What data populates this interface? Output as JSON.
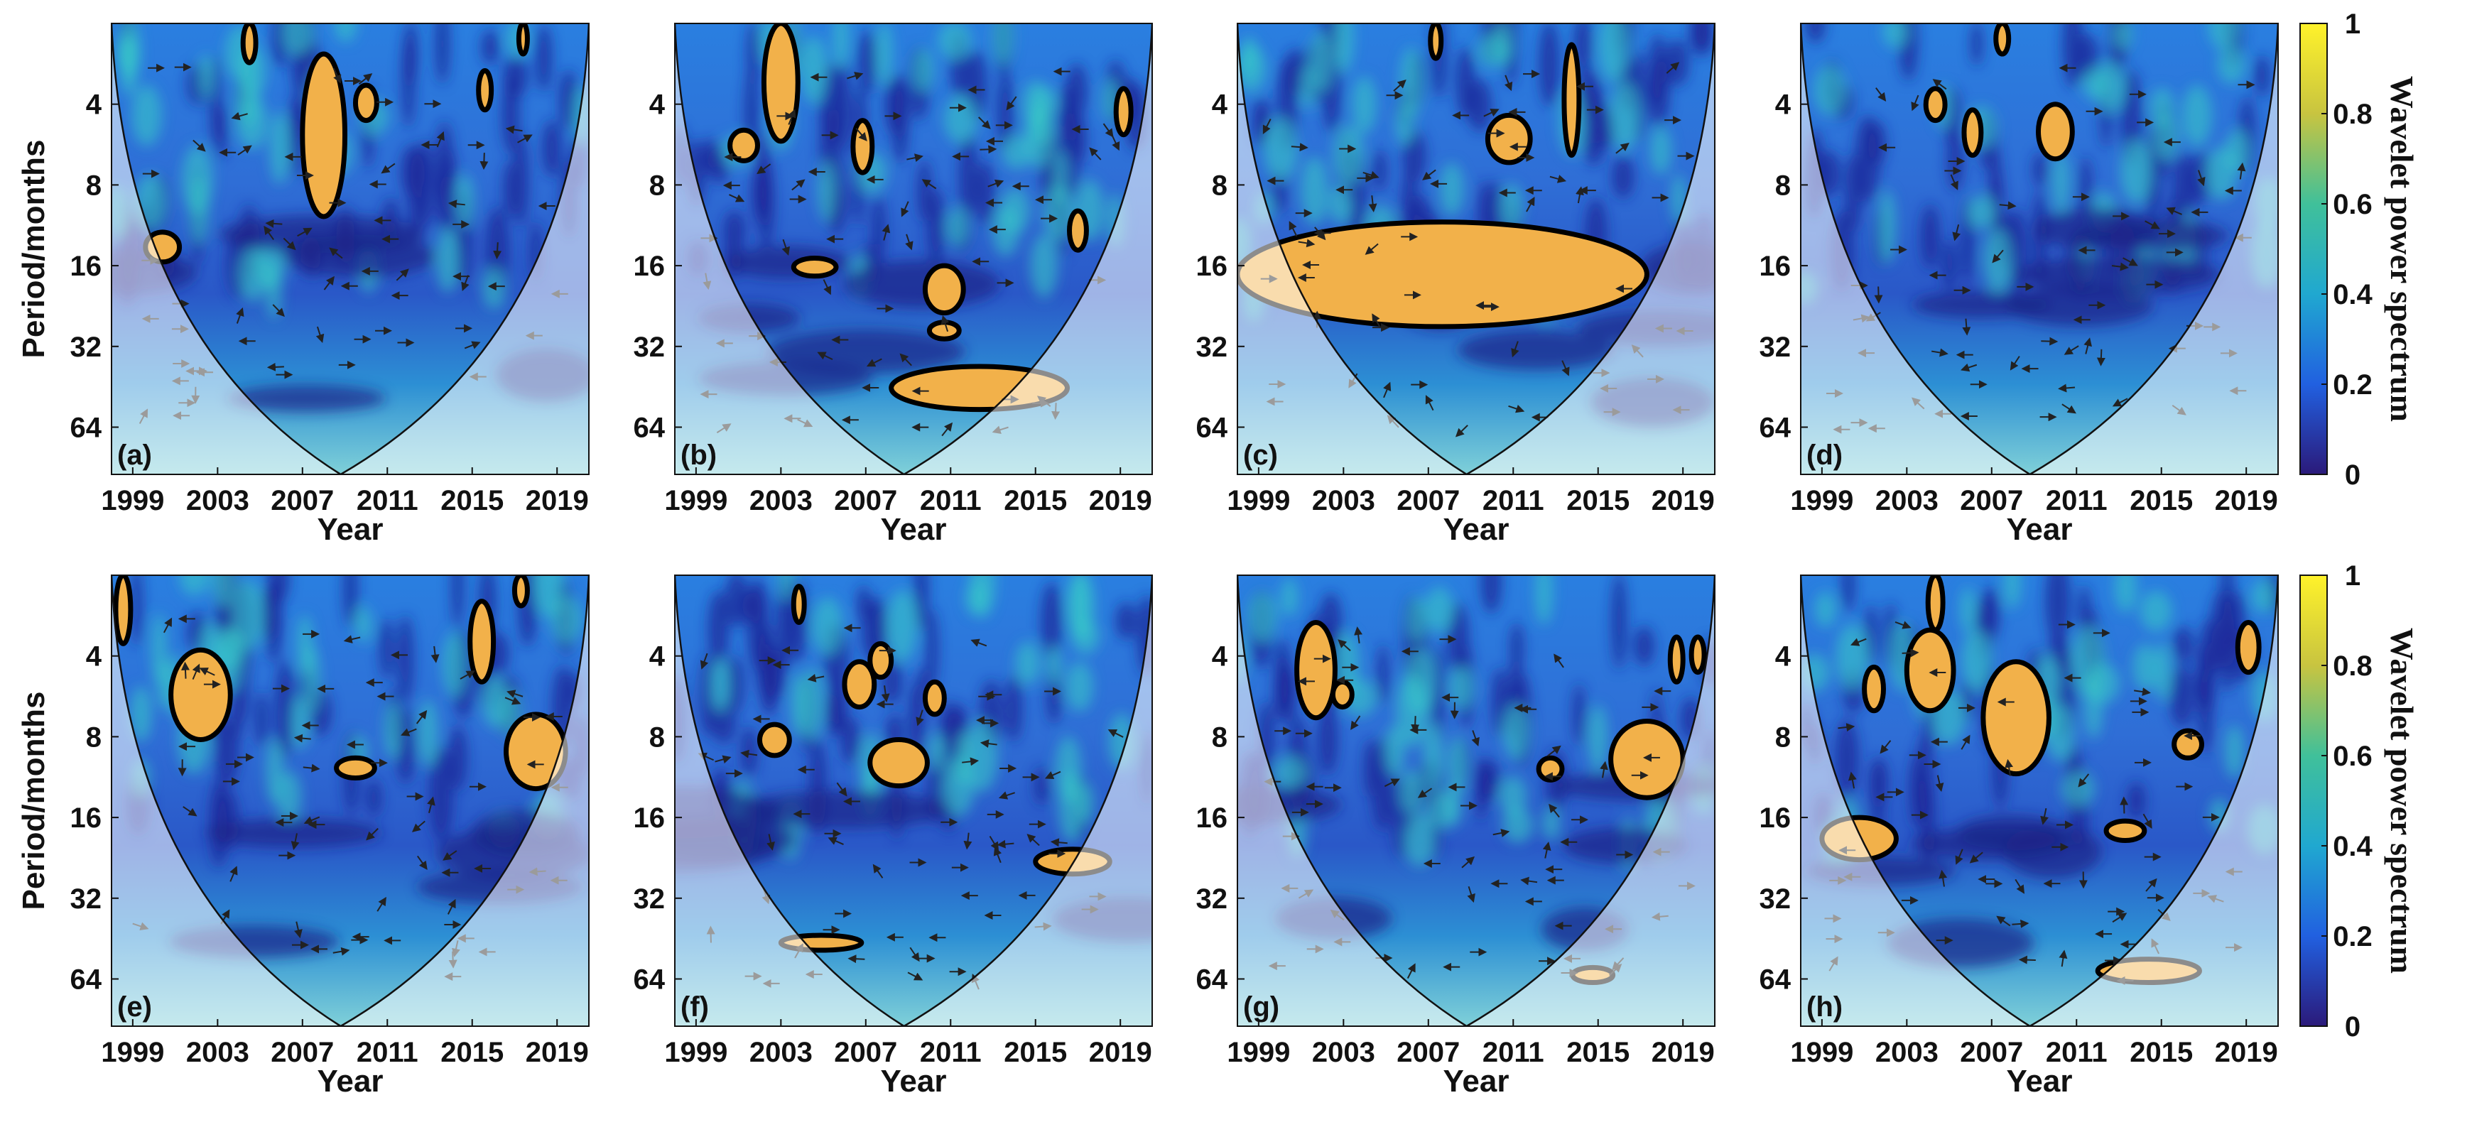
{
  "chart_data": {
    "type": "heatmap",
    "subtype": "wavelet-coherence",
    "x": {
      "label": "Year",
      "ticks": [
        "1999",
        "2003",
        "2007",
        "2011",
        "2015",
        "2019"
      ],
      "range": [
        1998.0,
        2020.5
      ]
    },
    "y": {
      "label": "Period/months",
      "ticks": [
        "4",
        "8",
        "16",
        "32",
        "64"
      ],
      "scale": "log2",
      "range": [
        2,
        96
      ],
      "reversed": true
    },
    "colorbar": {
      "title": "Wavelet power spectrum",
      "ticks": [
        "0",
        "0.2",
        "0.4",
        "0.6",
        "0.8",
        "1"
      ],
      "range": [
        0,
        1
      ],
      "colors": [
        "#2b1a7a",
        "#2160e0",
        "#20a8d0",
        "#40c09a",
        "#c8c440",
        "#fff22a"
      ]
    },
    "colors": {
      "significant_region": "#f2b14a",
      "contour": "#000000",
      "arrow": "#222222",
      "cone_shade": "#ffffff"
    },
    "panels": [
      {
        "label": "(a)",
        "regions": [
          {
            "x": [
              2007.0,
              2009.0
            ],
            "y": [
              2.6,
              10.5
            ]
          },
          {
            "x": [
              1999.6,
              2001.2
            ],
            "y": [
              12.0,
              15.5
            ]
          },
          {
            "x": [
              2009.5,
              2010.5
            ],
            "y": [
              3.4,
              4.6
            ]
          },
          {
            "x": [
              2015.3,
              2015.9
            ],
            "y": [
              3.0,
              4.2
            ]
          },
          {
            "x": [
              2004.2,
              2004.8
            ],
            "y": [
              2.0,
              2.8
            ]
          },
          {
            "x": [
              2017.2,
              2017.6
            ],
            "y": [
              2.0,
              2.6
            ]
          }
        ]
      },
      {
        "label": "(b)",
        "regions": [
          {
            "x": [
              2008.2,
              2016.5
            ],
            "y": [
              38.0,
              55.0
            ]
          },
          {
            "x": [
              2002.2,
              2003.8
            ],
            "y": [
              2.0,
              5.5
            ]
          },
          {
            "x": [
              2000.6,
              2001.9
            ],
            "y": [
              5.0,
              6.5
            ]
          },
          {
            "x": [
              2006.4,
              2007.3
            ],
            "y": [
              4.6,
              7.2
            ]
          },
          {
            "x": [
              2009.8,
              2011.6
            ],
            "y": [
              16.0,
              24.0
            ]
          },
          {
            "x": [
              2003.6,
              2005.6
            ],
            "y": [
              15.0,
              17.5
            ]
          },
          {
            "x": [
              2010.0,
              2011.4
            ],
            "y": [
              26.0,
              30.0
            ]
          },
          {
            "x": [
              2016.6,
              2017.4
            ],
            "y": [
              10.0,
              14.0
            ]
          },
          {
            "x": [
              2018.8,
              2019.5
            ],
            "y": [
              3.5,
              5.2
            ]
          }
        ]
      },
      {
        "label": "(c)",
        "regions": [
          {
            "x": [
              1998.0,
              2017.3
            ],
            "y": [
              11.0,
              27.0
            ]
          },
          {
            "x": [
              2013.4,
              2014.1
            ],
            "y": [
              2.4,
              6.2
            ]
          },
          {
            "x": [
              2009.8,
              2011.8
            ],
            "y": [
              4.4,
              6.6
            ]
          },
          {
            "x": [
              2007.1,
              2007.6
            ],
            "y": [
              2.0,
              2.7
            ]
          }
        ]
      },
      {
        "label": "(d)",
        "regions": [
          {
            "x": [
              2009.2,
              2010.8
            ],
            "y": [
              4.0,
              6.4
            ]
          },
          {
            "x": [
              2003.9,
              2004.8
            ],
            "y": [
              3.5,
              4.6
            ]
          },
          {
            "x": [
              2005.7,
              2006.5
            ],
            "y": [
              4.2,
              6.2
            ]
          },
          {
            "x": [
              2007.2,
              2007.8
            ],
            "y": [
              2.0,
              2.6
            ]
          }
        ]
      },
      {
        "label": "(e)",
        "regions": [
          {
            "x": [
              2000.8,
              2003.6
            ],
            "y": [
              3.8,
              8.2
            ]
          },
          {
            "x": [
              2016.6,
              2019.4
            ],
            "y": [
              6.6,
              12.5
            ]
          },
          {
            "x": [
              2014.9,
              2016.0
            ],
            "y": [
              2.5,
              5.0
            ]
          },
          {
            "x": [
              2008.6,
              2010.4
            ],
            "y": [
              9.6,
              11.4
            ]
          },
          {
            "x": [
              1998.2,
              1998.9
            ],
            "y": [
              2.0,
              3.6
            ]
          },
          {
            "x": [
              2017.0,
              2017.6
            ],
            "y": [
              2.0,
              2.6
            ]
          }
        ]
      },
      {
        "label": "(f)",
        "regions": [
          {
            "x": [
              2007.2,
              2009.9
            ],
            "y": [
              8.2,
              12.2
            ]
          },
          {
            "x": [
              2015.0,
              2018.5
            ],
            "y": [
              21.0,
              26.0
            ]
          },
          {
            "x": [
              2003.0,
              2006.8
            ],
            "y": [
              44.0,
              50.0
            ]
          },
          {
            "x": [
              2002.0,
              2003.4
            ],
            "y": [
              7.2,
              9.4
            ]
          },
          {
            "x": [
              2006.0,
              2007.4
            ],
            "y": [
              4.2,
              6.2
            ]
          },
          {
            "x": [
              2007.2,
              2008.2
            ],
            "y": [
              3.6,
              4.8
            ]
          },
          {
            "x": [
              2009.8,
              2010.7
            ],
            "y": [
              5.0,
              6.6
            ]
          },
          {
            "x": [
              2003.6,
              2004.1
            ],
            "y": [
              2.2,
              3.0
            ]
          }
        ]
      },
      {
        "label": "(g)",
        "regions": [
          {
            "x": [
              2015.6,
              2019.0
            ],
            "y": [
              7.0,
              13.5
            ]
          },
          {
            "x": [
              2000.8,
              2002.6
            ],
            "y": [
              3.0,
              6.8
            ]
          },
          {
            "x": [
              2013.8,
              2015.7
            ],
            "y": [
              58.0,
              66.0
            ]
          },
          {
            "x": [
              2012.2,
              2013.3
            ],
            "y": [
              9.6,
              11.6
            ]
          },
          {
            "x": [
              2002.5,
              2003.4
            ],
            "y": [
              5.0,
              6.2
            ]
          },
          {
            "x": [
              2018.4,
              2019.0
            ],
            "y": [
              3.4,
              5.0
            ]
          },
          {
            "x": [
              2019.4,
              2020.0
            ],
            "y": [
              3.4,
              4.6
            ]
          }
        ]
      },
      {
        "label": "(h)",
        "regions": [
          {
            "x": [
              2006.6,
              2009.7
            ],
            "y": [
              4.2,
              11.0
            ]
          },
          {
            "x": [
              2003.0,
              2005.2
            ],
            "y": [
              3.2,
              6.4
            ]
          },
          {
            "x": [
              1999.0,
              2002.5
            ],
            "y": [
              16.0,
              23.0
            ]
          },
          {
            "x": [
              2012.0,
              2016.8
            ],
            "y": [
              54.0,
              66.0
            ]
          },
          {
            "x": [
              2012.4,
              2014.2
            ],
            "y": [
              16.5,
              19.5
            ]
          },
          {
            "x": [
              2015.6,
              2016.9
            ],
            "y": [
              7.6,
              9.6
            ]
          },
          {
            "x": [
              2001.0,
              2001.9
            ],
            "y": [
              4.4,
              6.4
            ]
          },
          {
            "x": [
              2018.6,
              2019.6
            ],
            "y": [
              3.0,
              4.6
            ]
          },
          {
            "x": [
              2004.0,
              2004.7
            ],
            "y": [
              2.0,
              3.2
            ]
          }
        ]
      }
    ]
  }
}
